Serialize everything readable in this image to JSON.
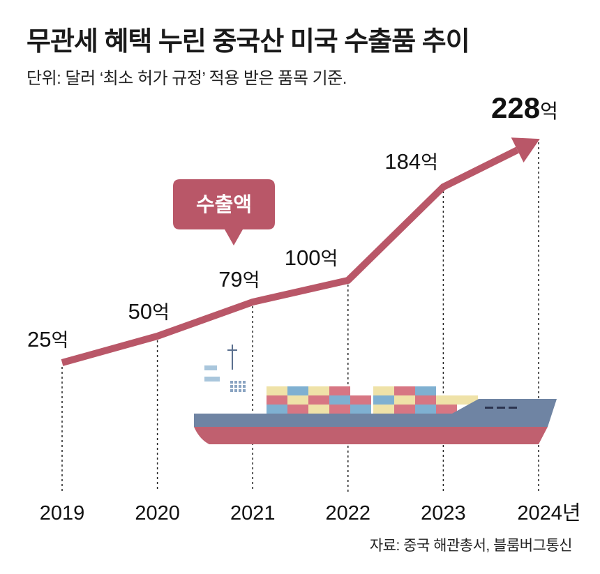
{
  "header": {
    "title": "무관세 혜택 누린 중국산 미국 수출품 추이",
    "subtitle": "단위: 달러 ‘최소 허가 규정’ 적용 받은 품목 기준."
  },
  "footer": {
    "source": "자료: 중국 해관총서, 블룸버그통신"
  },
  "colors": {
    "line": "#b95768",
    "bubble": "#b95768",
    "hull_top": "#6f84a3",
    "hull_bottom": "#c0606f",
    "container_cream": "#efe2a8",
    "container_blue": "#7fb0d1",
    "container_pink": "#d77683"
  },
  "chart_data": {
    "type": "line",
    "x": [
      "2019",
      "2020",
      "2021",
      "2022",
      "2023",
      "2024"
    ],
    "x_tick_labels": [
      "2019",
      "2020",
      "2021",
      "2022",
      "2023",
      "2024년"
    ],
    "series": [
      {
        "name": "수출액",
        "values": [
          25,
          50,
          79,
          100,
          184,
          228
        ]
      }
    ],
    "data_labels": [
      "25",
      "50",
      "79",
      "100",
      "184",
      "228"
    ],
    "label_unit": "억",
    "callout": "수출액",
    "ylim": [
      0,
      240
    ]
  }
}
